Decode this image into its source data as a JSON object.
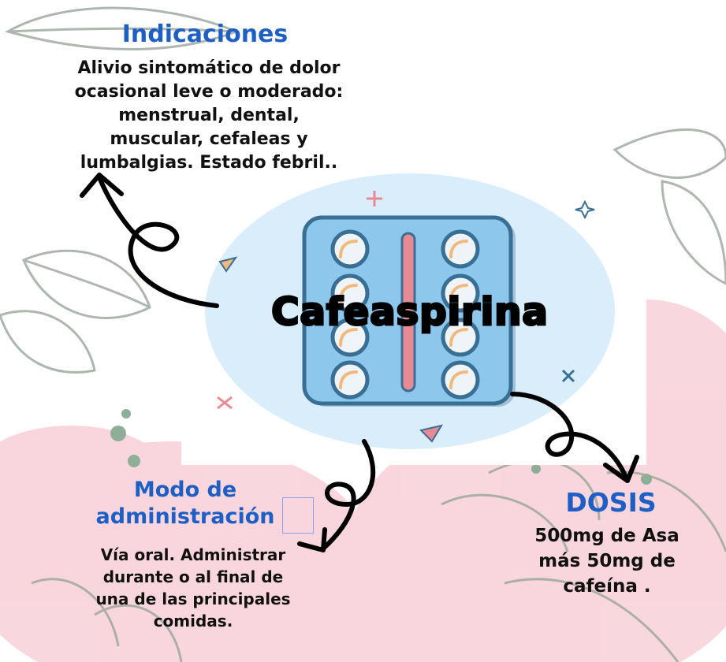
{
  "colors": {
    "heading_blue": "#1d5fc4",
    "text": "#111111",
    "pink_wash": "#f7c9d3",
    "circle_blue": "#d9edfb",
    "pack_blue": "#8ec7ec",
    "pack_outline": "#3a6f95",
    "pill_fill": "#eef4f8",
    "divider": "#e88a94",
    "leaf_green": "#9aa69a"
  },
  "indicaciones": {
    "title": "Indicaciones",
    "lines": [
      "Alivio sintomático de dolor",
      "ocasional leve o moderado:",
      "menstrual, dental,",
      "muscular, cefaleas y",
      "lumbalgias. Estado febril.."
    ]
  },
  "main": {
    "title": "Cafeaspirina",
    "image_icon": "blister-pack-icon"
  },
  "modo": {
    "title_lines": [
      "Modo de",
      "administración"
    ],
    "lines": [
      "Vía oral. Administrar",
      "durante o al final de",
      "una de las principales",
      "comidas."
    ]
  },
  "dosis": {
    "title": "DOSIS",
    "lines": [
      "500mg de Asa",
      "más 50mg de",
      "cafeína ."
    ]
  }
}
